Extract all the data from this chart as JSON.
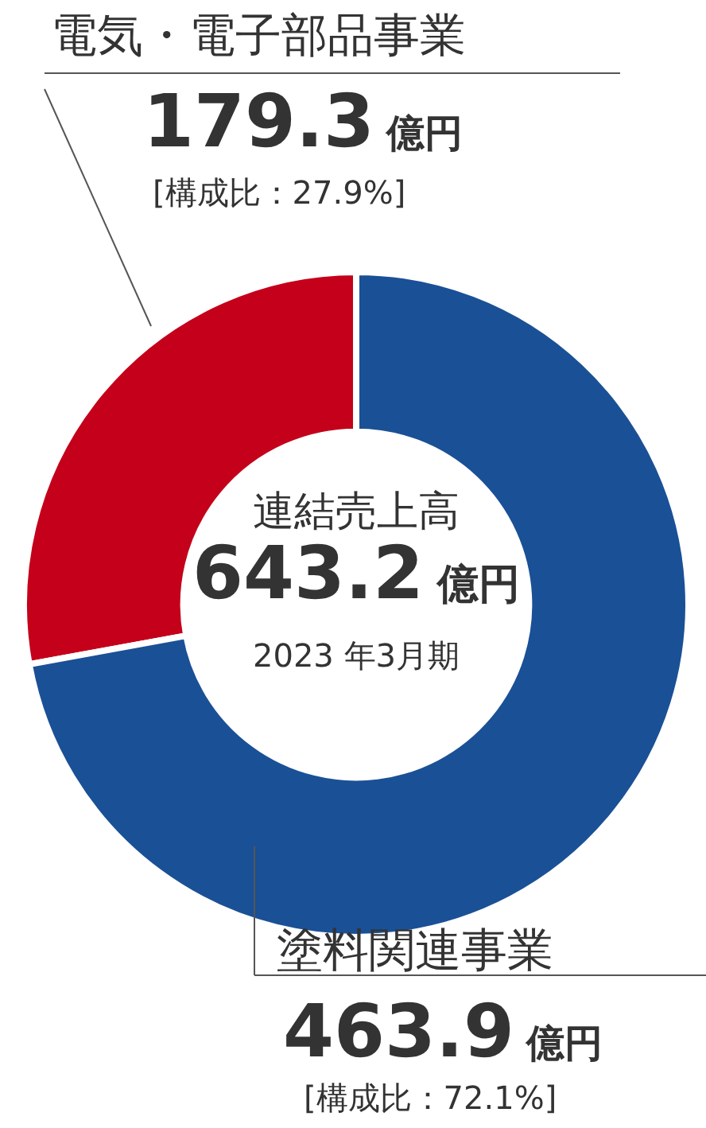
{
  "chart_data": {
    "type": "donut",
    "categories": [
      "電気・電子部品事業",
      "塗料関連事業"
    ],
    "values": [
      179.3,
      463.9
    ],
    "colors": [
      "#c4001a",
      "#1a5096"
    ],
    "value_labels": [
      "179.3 億円",
      "463.9 億円"
    ],
    "annotations": [
      "連結売上高",
      "643.2 億円",
      "2023 年3月期",
      "[構成比：27.9%]",
      "[構成比：72.1%]"
    ],
    "legend": false
  }
}
